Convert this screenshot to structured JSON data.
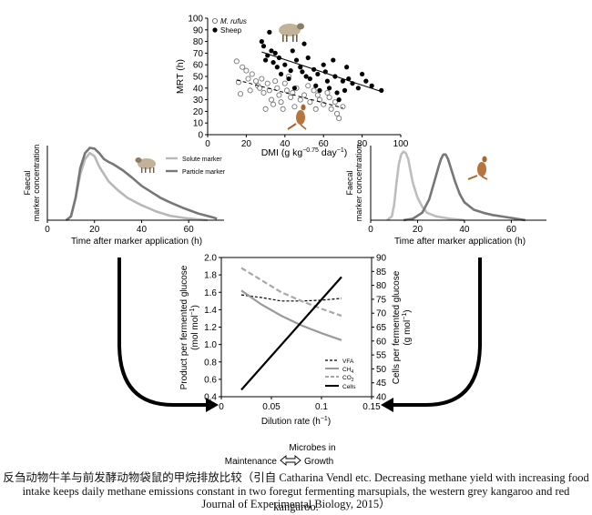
{
  "chart_data": [
    {
      "type": "scatter",
      "xlabel": "DMI (g kg",
      "xlabel_sup": "−0.75",
      "xlabel_tail": " day",
      "xlabel_sup2": "−1",
      "xlabel_end": ")",
      "ylabel": "MRT (h)",
      "xlim": [
        0,
        100
      ],
      "ylim": [
        0,
        100
      ],
      "xticks": [
        "0",
        "20",
        "40",
        "60",
        "80",
        "100"
      ],
      "yticks": [
        "0",
        "10",
        "20",
        "30",
        "40",
        "50",
        "60",
        "70",
        "80",
        "90",
        "100"
      ],
      "legend": [
        "M. rufus",
        "Sheep"
      ],
      "series": [
        {
          "name": "M. rufus",
          "marker": "open-circle",
          "points": [
            [
              15,
              63
            ],
            [
              16,
              45
            ],
            [
              17,
              35
            ],
            [
              18,
              58
            ],
            [
              20,
              55
            ],
            [
              21,
              48
            ],
            [
              22,
              38
            ],
            [
              23,
              52
            ],
            [
              25,
              46
            ],
            [
              26,
              42
            ],
            [
              27,
              40
            ],
            [
              28,
              48
            ],
            [
              29,
              36
            ],
            [
              30,
              22
            ],
            [
              31,
              44
            ],
            [
              32,
              38
            ],
            [
              33,
              30
            ],
            [
              34,
              26
            ],
            [
              35,
              46
            ],
            [
              36,
              40
            ],
            [
              37,
              34
            ],
            [
              38,
              28
            ],
            [
              39,
              22
            ],
            [
              40,
              44
            ],
            [
              41,
              38
            ],
            [
              42,
              50
            ],
            [
              43,
              32
            ],
            [
              44,
              36
            ],
            [
              45,
              24
            ],
            [
              46,
              40
            ],
            [
              48,
              30
            ],
            [
              50,
              34
            ],
            [
              52,
              42
            ],
            [
              53,
              28
            ],
            [
              55,
              38
            ],
            [
              56,
              22
            ],
            [
              57,
              34
            ],
            [
              58,
              30
            ],
            [
              60,
              26
            ],
            [
              62,
              36
            ],
            [
              63,
              32
            ],
            [
              64,
              22
            ],
            [
              66,
              28
            ],
            [
              67,
              18
            ],
            [
              68,
              14
            ],
            [
              70,
              24
            ]
          ],
          "fit": [
            [
              15,
              47
            ],
            [
              70,
              23
            ]
          ]
        },
        {
          "name": "Sheep",
          "marker": "filled-circle",
          "points": [
            [
              28,
              80
            ],
            [
              29,
              76
            ],
            [
              30,
              64
            ],
            [
              31,
              68
            ],
            [
              32,
              88
            ],
            [
              33,
              72
            ],
            [
              34,
              62
            ],
            [
              35,
              70
            ],
            [
              36,
              58
            ],
            [
              37,
              66
            ],
            [
              38,
              52
            ],
            [
              40,
              60
            ],
            [
              42,
              48
            ],
            [
              43,
              55
            ],
            [
              44,
              72
            ],
            [
              45,
              40
            ],
            [
              46,
              64
            ],
            [
              48,
              58
            ],
            [
              49,
              54
            ],
            [
              50,
              78
            ],
            [
              51,
              50
            ],
            [
              52,
              66
            ],
            [
              53,
              48
            ],
            [
              55,
              56
            ],
            [
              56,
              42
            ],
            [
              57,
              52
            ],
            [
              58,
              38
            ],
            [
              60,
              60
            ],
            [
              61,
              54
            ],
            [
              62,
              46
            ],
            [
              63,
              40
            ],
            [
              65,
              64
            ],
            [
              66,
              50
            ],
            [
              67,
              36
            ],
            [
              68,
              30
            ],
            [
              70,
              46
            ],
            [
              71,
              38
            ],
            [
              72,
              58
            ],
            [
              73,
              48
            ],
            [
              75,
              44
            ],
            [
              78,
              40
            ],
            [
              80,
              52
            ],
            [
              82,
              46
            ],
            [
              85,
              42
            ],
            [
              90,
              38
            ]
          ],
          "fit": [
            [
              28,
              71
            ],
            [
              90,
              37
            ]
          ]
        }
      ]
    },
    {
      "type": "line",
      "xlabel": "Time after marker application (h)",
      "ylabel": "Faecal marker concentration",
      "xlim": [
        0,
        75
      ],
      "xticks": [
        "0",
        "20",
        "40",
        "60"
      ],
      "legend": [
        "Solute marker",
        "Particle marker"
      ],
      "series": [
        {
          "name": "Solute marker",
          "color": "#b8b8b8",
          "points": [
            [
              8,
              0
            ],
            [
              10,
              0.05
            ],
            [
              12,
              0.3
            ],
            [
              14,
              0.62
            ],
            [
              16,
              0.82
            ],
            [
              18,
              0.9
            ],
            [
              20,
              0.86
            ],
            [
              22,
              0.72
            ],
            [
              26,
              0.52
            ],
            [
              30,
              0.4
            ],
            [
              34,
              0.3
            ],
            [
              40,
              0.2
            ],
            [
              46,
              0.12
            ],
            [
              52,
              0.06
            ],
            [
              58,
              0.03
            ],
            [
              64,
              0.01
            ],
            [
              68,
              0
            ]
          ]
        },
        {
          "name": "Particle marker",
          "color": "#777777",
          "points": [
            [
              8,
              0
            ],
            [
              10,
              0.05
            ],
            [
              12,
              0.3
            ],
            [
              14,
              0.7
            ],
            [
              16,
              0.9
            ],
            [
              18,
              0.97
            ],
            [
              20,
              0.96
            ],
            [
              22,
              0.9
            ],
            [
              24,
              0.82
            ],
            [
              26,
              0.78
            ],
            [
              28,
              0.75
            ],
            [
              32,
              0.67
            ],
            [
              36,
              0.57
            ],
            [
              40,
              0.46
            ],
            [
              44,
              0.38
            ],
            [
              48,
              0.3
            ],
            [
              52,
              0.24
            ],
            [
              58,
              0.16
            ],
            [
              64,
              0.09
            ],
            [
              70,
              0.04
            ],
            [
              72,
              0.02
            ]
          ]
        }
      ]
    },
    {
      "type": "line",
      "xlabel": "Time after marker application (h)",
      "ylabel": "Faecal marker concentration",
      "xlim": [
        0,
        75
      ],
      "xticks": [
        "0",
        "20",
        "40",
        "60"
      ],
      "series": [
        {
          "name": "Solute marker",
          "color": "#bdbdbd",
          "points": [
            [
              7,
              0
            ],
            [
              9,
              0.05
            ],
            [
              10,
              0.2
            ],
            [
              11,
              0.5
            ],
            [
              12,
              0.75
            ],
            [
              13,
              0.88
            ],
            [
              14,
              0.92
            ],
            [
              15,
              0.9
            ],
            [
              16,
              0.82
            ],
            [
              17,
              0.66
            ],
            [
              18,
              0.5
            ],
            [
              20,
              0.3
            ],
            [
              22,
              0.18
            ],
            [
              24,
              0.1
            ],
            [
              28,
              0.05
            ],
            [
              34,
              0.02
            ],
            [
              40,
              0
            ]
          ]
        },
        {
          "name": "Particle marker",
          "color": "#777777",
          "points": [
            [
              14,
              0
            ],
            [
              18,
              0.02
            ],
            [
              22,
              0.1
            ],
            [
              25,
              0.28
            ],
            [
              27,
              0.5
            ],
            [
              29,
              0.72
            ],
            [
              30,
              0.82
            ],
            [
              31,
              0.88
            ],
            [
              32,
              0.88
            ],
            [
              33,
              0.82
            ],
            [
              34,
              0.72
            ],
            [
              36,
              0.52
            ],
            [
              38,
              0.35
            ],
            [
              40,
              0.24
            ],
            [
              44,
              0.14
            ],
            [
              48,
              0.1
            ],
            [
              52,
              0.07
            ],
            [
              56,
              0.05
            ],
            [
              60,
              0.03
            ],
            [
              64,
              0.01
            ],
            [
              66,
              0
            ]
          ]
        }
      ]
    },
    {
      "type": "line",
      "xlabel": "Dilution rate (h",
      "xlabel_sup": "−1",
      "xlabel_end": ")",
      "ylabel_left": "Product per fermented glucose",
      "ylabel_left2": "(mol mol",
      "ylabel_left_sup": "−1",
      "ylabel_left_end": ")",
      "ylabel_right": "Cells per fermented glucose",
      "ylabel_right2": "(g mol",
      "ylabel_right_sup": "−1",
      "ylabel_right_end": ")",
      "xlim": [
        0,
        0.15
      ],
      "ylim_left": [
        0.4,
        2.0
      ],
      "ylim_right": [
        40,
        90
      ],
      "xticks": [
        "0",
        "0.05",
        "0.1",
        "0.15"
      ],
      "yticks_left": [
        "0.4",
        "0.6",
        "0.8",
        "1.0",
        "1.2",
        "1.4",
        "1.6",
        "1.8",
        "2.0"
      ],
      "yticks_right": [
        "40",
        "45",
        "50",
        "55",
        "60",
        "65",
        "70",
        "75",
        "80",
        "85",
        "90"
      ],
      "legend": [
        "VFA",
        "CH",
        "CO",
        "Cells"
      ],
      "legend_subs": [
        "",
        "4",
        "2",
        ""
      ],
      "series": [
        {
          "name": "VFA",
          "axis": "left",
          "style": "dashed-black",
          "points": [
            [
              0.02,
              1.57
            ],
            [
              0.04,
              1.54
            ],
            [
              0.06,
              1.5
            ],
            [
              0.08,
              1.5
            ],
            [
              0.1,
              1.51
            ],
            [
              0.12,
              1.53
            ]
          ]
        },
        {
          "name": "CH4",
          "axis": "left",
          "style": "solid-gray",
          "points": [
            [
              0.02,
              1.62
            ],
            [
              0.04,
              1.46
            ],
            [
              0.06,
              1.33
            ],
            [
              0.08,
              1.22
            ],
            [
              0.1,
              1.13
            ],
            [
              0.12,
              1.05
            ]
          ]
        },
        {
          "name": "CO2",
          "axis": "left",
          "style": "dashed-gray",
          "points": [
            [
              0.02,
              1.88
            ],
            [
              0.04,
              1.74
            ],
            [
              0.06,
              1.6
            ],
            [
              0.08,
              1.5
            ],
            [
              0.1,
              1.41
            ],
            [
              0.12,
              1.33
            ]
          ]
        },
        {
          "name": "Cells",
          "axis": "right",
          "style": "solid-black",
          "points": [
            [
              0.02,
              42.5
            ],
            [
              0.12,
              83
            ]
          ]
        }
      ]
    }
  ],
  "labels": {
    "microbes_in": "Microbes in",
    "maintenance": "Maintenance",
    "growth": "Growth"
  },
  "caption": {
    "line1": "反刍动物牛羊与前发酵动物袋鼠的甲烷排放比较（引自 Catharina Vendl etc. Decreasing methane yield with increasing food",
    "line2": "intake keeps daily methane emissions constant in two foregut fermenting marsupials, the western grey kangaroo and red kangaroo.",
    "line3": "Journal of Experimental Biology, 2015）"
  }
}
